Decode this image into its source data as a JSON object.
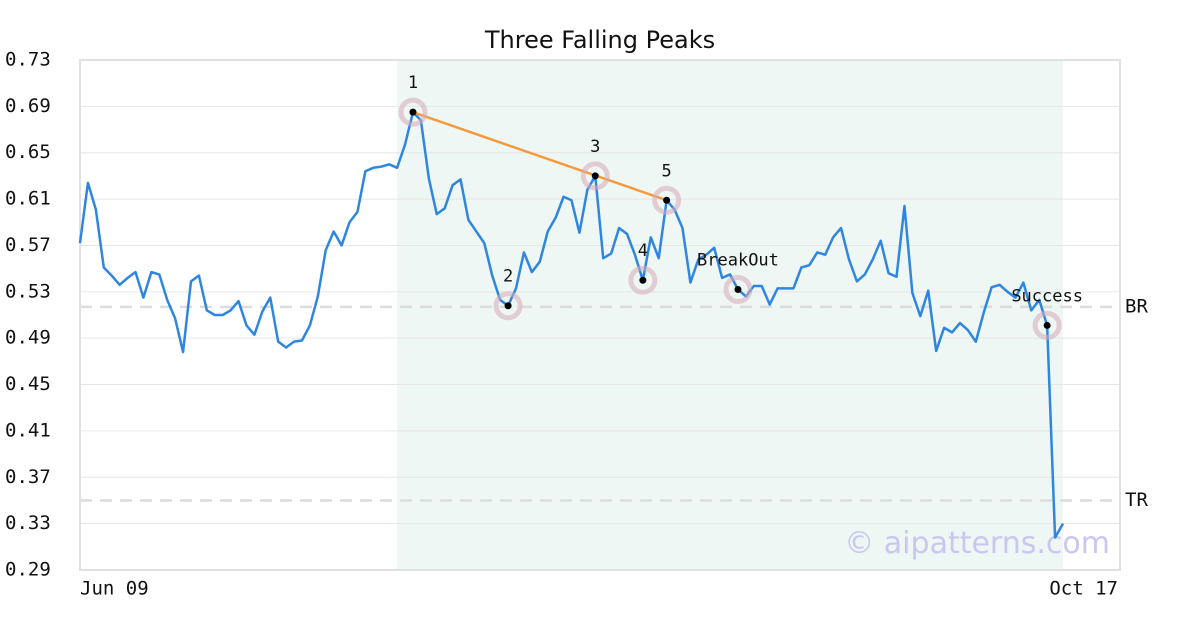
{
  "chart_data": {
    "type": "line",
    "title": "Three Falling Peaks",
    "watermark": "© aipatterns.com",
    "categories": [
      "Jun 09",
      null,
      null,
      null,
      null,
      null,
      null,
      null,
      null,
      null,
      null,
      null,
      null,
      null,
      null,
      null,
      null,
      null,
      null,
      null,
      null,
      null,
      null,
      null,
      null,
      null,
      null,
      null,
      null,
      null,
      null,
      null,
      null,
      null,
      null,
      null,
      null,
      null,
      null,
      null,
      null,
      null,
      null,
      null,
      null,
      null,
      null,
      null,
      null,
      null,
      null,
      null,
      null,
      null,
      null,
      null,
      null,
      null,
      null,
      null,
      null,
      null,
      null,
      null,
      null,
      null,
      null,
      null,
      null,
      null,
      null,
      null,
      null,
      null,
      null,
      null,
      null,
      null,
      null,
      null,
      null,
      null,
      null,
      null,
      null,
      null,
      null,
      null,
      null,
      null,
      null,
      null,
      null,
      null,
      null,
      null,
      null,
      null,
      null,
      null,
      null,
      null,
      null,
      null,
      null,
      null,
      null,
      null,
      null,
      null,
      null,
      null,
      null,
      null,
      null,
      null,
      null,
      null,
      null,
      null,
      null,
      null,
      null,
      null,
      "Oct 17"
    ],
    "series": [
      {
        "color": "#2f86e0",
        "values": [
          0.572,
          0.624,
          0.601,
          0.551,
          0.544,
          0.536,
          0.542,
          0.547,
          0.525,
          0.547,
          0.545,
          0.523,
          0.507,
          0.478,
          0.539,
          0.544,
          0.514,
          0.51,
          0.51,
          0.514,
          0.522,
          0.501,
          0.493,
          0.513,
          0.525,
          0.487,
          0.482,
          0.487,
          0.488,
          0.501,
          0.526,
          0.566,
          0.582,
          0.57,
          0.59,
          0.599,
          0.634,
          0.637,
          0.638,
          0.64,
          0.637,
          0.657,
          0.685,
          0.678,
          0.628,
          0.597,
          0.602,
          0.622,
          0.627,
          0.592,
          0.582,
          0.572,
          0.544,
          0.523,
          0.518,
          0.533,
          0.564,
          0.547,
          0.556,
          0.582,
          0.594,
          0.612,
          0.609,
          0.581,
          0.618,
          0.63,
          0.559,
          0.563,
          0.585,
          0.58,
          0.562,
          0.54,
          0.577,
          0.559,
          0.609,
          0.601,
          0.585,
          0.538,
          0.558,
          0.562,
          0.568,
          0.542,
          0.545,
          0.532,
          0.526,
          0.535,
          0.535,
          0.519,
          0.533,
          0.533,
          0.533,
          0.551,
          0.553,
          0.564,
          0.562,
          0.577,
          0.585,
          0.558,
          0.539,
          0.545,
          0.558,
          0.574,
          0.546,
          0.543,
          0.604,
          0.529,
          0.509,
          0.531,
          0.479,
          0.499,
          0.495,
          0.503,
          0.497,
          0.487,
          0.512,
          0.534,
          0.536,
          0.53,
          0.525,
          0.538,
          0.514,
          0.523,
          0.501,
          0.318,
          0.33
        ]
      }
    ],
    "ylim": [
      0.29,
      0.73
    ],
    "yticks": [
      0.29,
      0.33,
      0.37,
      0.41,
      0.45,
      0.49,
      0.53,
      0.57,
      0.61,
      0.65,
      0.69,
      0.73
    ],
    "grid": true,
    "shade": {
      "from": 40,
      "to": 124,
      "color": "#eef7f3"
    },
    "annotations": [
      {
        "label": "1",
        "index": 42
      },
      {
        "label": "2",
        "index": 54
      },
      {
        "label": "3",
        "index": 65
      },
      {
        "label": "4",
        "index": 71
      },
      {
        "label": "5",
        "index": 74
      },
      {
        "label": "BreakOut",
        "index": 83
      },
      {
        "label": "Success",
        "index": 122
      }
    ],
    "trendline": {
      "from": 42,
      "to": 74,
      "color": "#f59a3c"
    },
    "reference_lines": [
      {
        "label": "BR",
        "value": 0.517
      },
      {
        "label": "TR",
        "value": 0.35
      }
    ]
  }
}
